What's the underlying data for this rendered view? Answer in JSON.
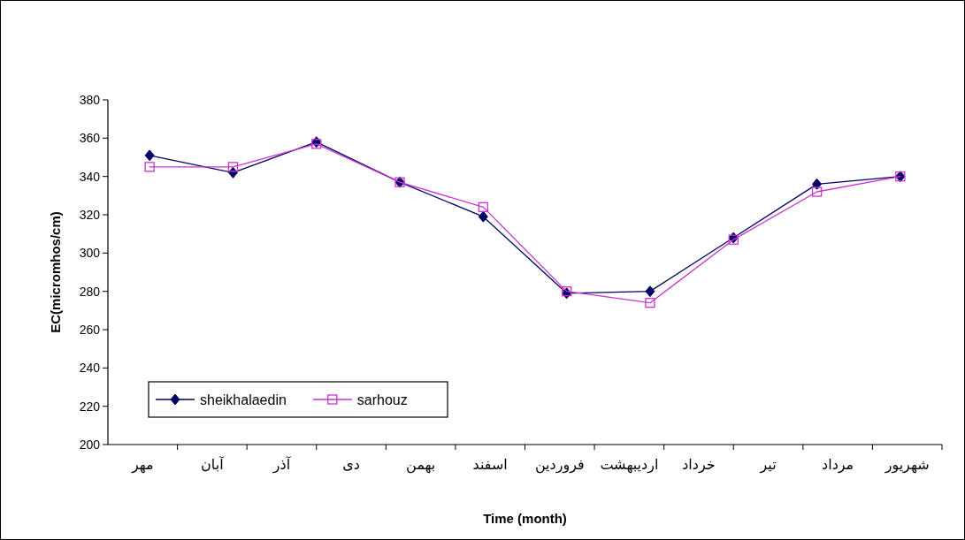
{
  "chart_data": {
    "type": "line",
    "xlabel": "Time (month)",
    "ylabel": "EC(micromhos/cm)",
    "categories": [
      null,
      null,
      null,
      null,
      null,
      null,
      null,
      null,
      null,
      null
    ],
    "series": [
      {
        "name": "sheikhalaedin",
        "color": "#000066",
        "marker": "diamond",
        "values": [
          351,
          342,
          358,
          337,
          319,
          279,
          280,
          308,
          336,
          340
        ]
      },
      {
        "name": "sarhouz",
        "color": "#cc33cc",
        "marker": "square",
        "values": [
          345,
          345,
          357,
          337,
          324,
          280,
          274,
          307,
          332,
          340
        ]
      }
    ],
    "annotations": [
      "مهر",
      "آبان",
      "آذر",
      "دی",
      "بهمن",
      "اسفند",
      "فروردین",
      "اردیبهشت",
      "خرداد",
      "تیر",
      "مرداد",
      "شهریور"
    ],
    "ylim": [
      200,
      380
    ],
    "yticks": [
      200,
      220,
      240,
      260,
      280,
      300,
      320,
      340,
      360,
      380
    ],
    "grid": false,
    "legend": "bottom left",
    "line_style": "solid"
  }
}
